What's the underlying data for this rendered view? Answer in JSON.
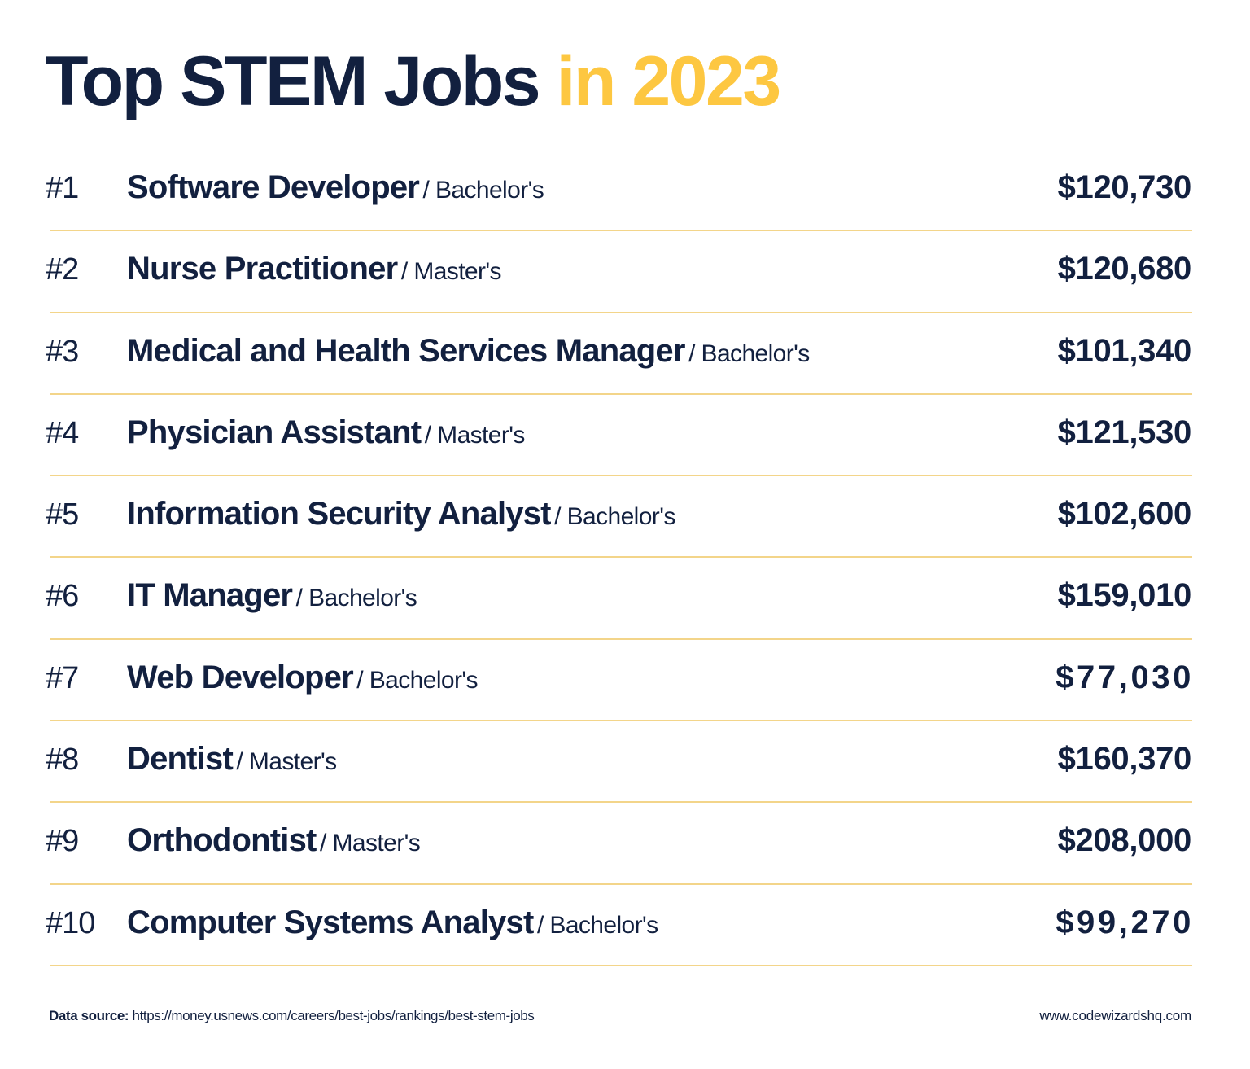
{
  "header": {
    "title_part1": "Top STEM Jobs",
    "title_part2": "in 2023",
    "title_color": "#12203f",
    "accent_color": "#fdc741"
  },
  "jobs": [
    {
      "rank": "#1",
      "title": "Software Developer",
      "degree": "/ Bachelor's",
      "salary": "$120,730"
    },
    {
      "rank": "#2",
      "title": "Nurse Practitioner",
      "degree": "/ Master's",
      "salary": "$120,680"
    },
    {
      "rank": "#3",
      "title": "Medical and Health Services Manager",
      "degree": "/ Bachelor's",
      "salary": "$101,340"
    },
    {
      "rank": "#4",
      "title": "Physician Assistant",
      "degree": "/ Master's",
      "salary": "$121,530"
    },
    {
      "rank": "#5",
      "title": "Information Security Analyst",
      "degree": "/ Bachelor's",
      "salary": "$102,600"
    },
    {
      "rank": "#6",
      "title": "IT Manager",
      "degree": "/ Bachelor's",
      "salary": "$159,010"
    },
    {
      "rank": "#7",
      "title": "Web Developer",
      "degree": "/ Bachelor's",
      "salary": "$77,030"
    },
    {
      "rank": "#8",
      "title": "Dentist",
      "degree": "/ Master's",
      "salary": "$160,370"
    },
    {
      "rank": "#9",
      "title": "Orthodontist",
      "degree": "/ Master's",
      "salary": "$208,000"
    },
    {
      "rank": "#10",
      "title": "Computer Systems Analyst",
      "degree": "/ Bachelor's",
      "salary": "$99,270"
    }
  ],
  "footer": {
    "source_label": "Data source:",
    "source_url": "https://money.usnews.com/careers/best-jobs/rankings/best-stem-jobs",
    "website": "www.codewizardshq.com"
  },
  "colors": {
    "navy": "#12203f",
    "yellow": "#fdc741",
    "divider": "#f3d58a"
  }
}
